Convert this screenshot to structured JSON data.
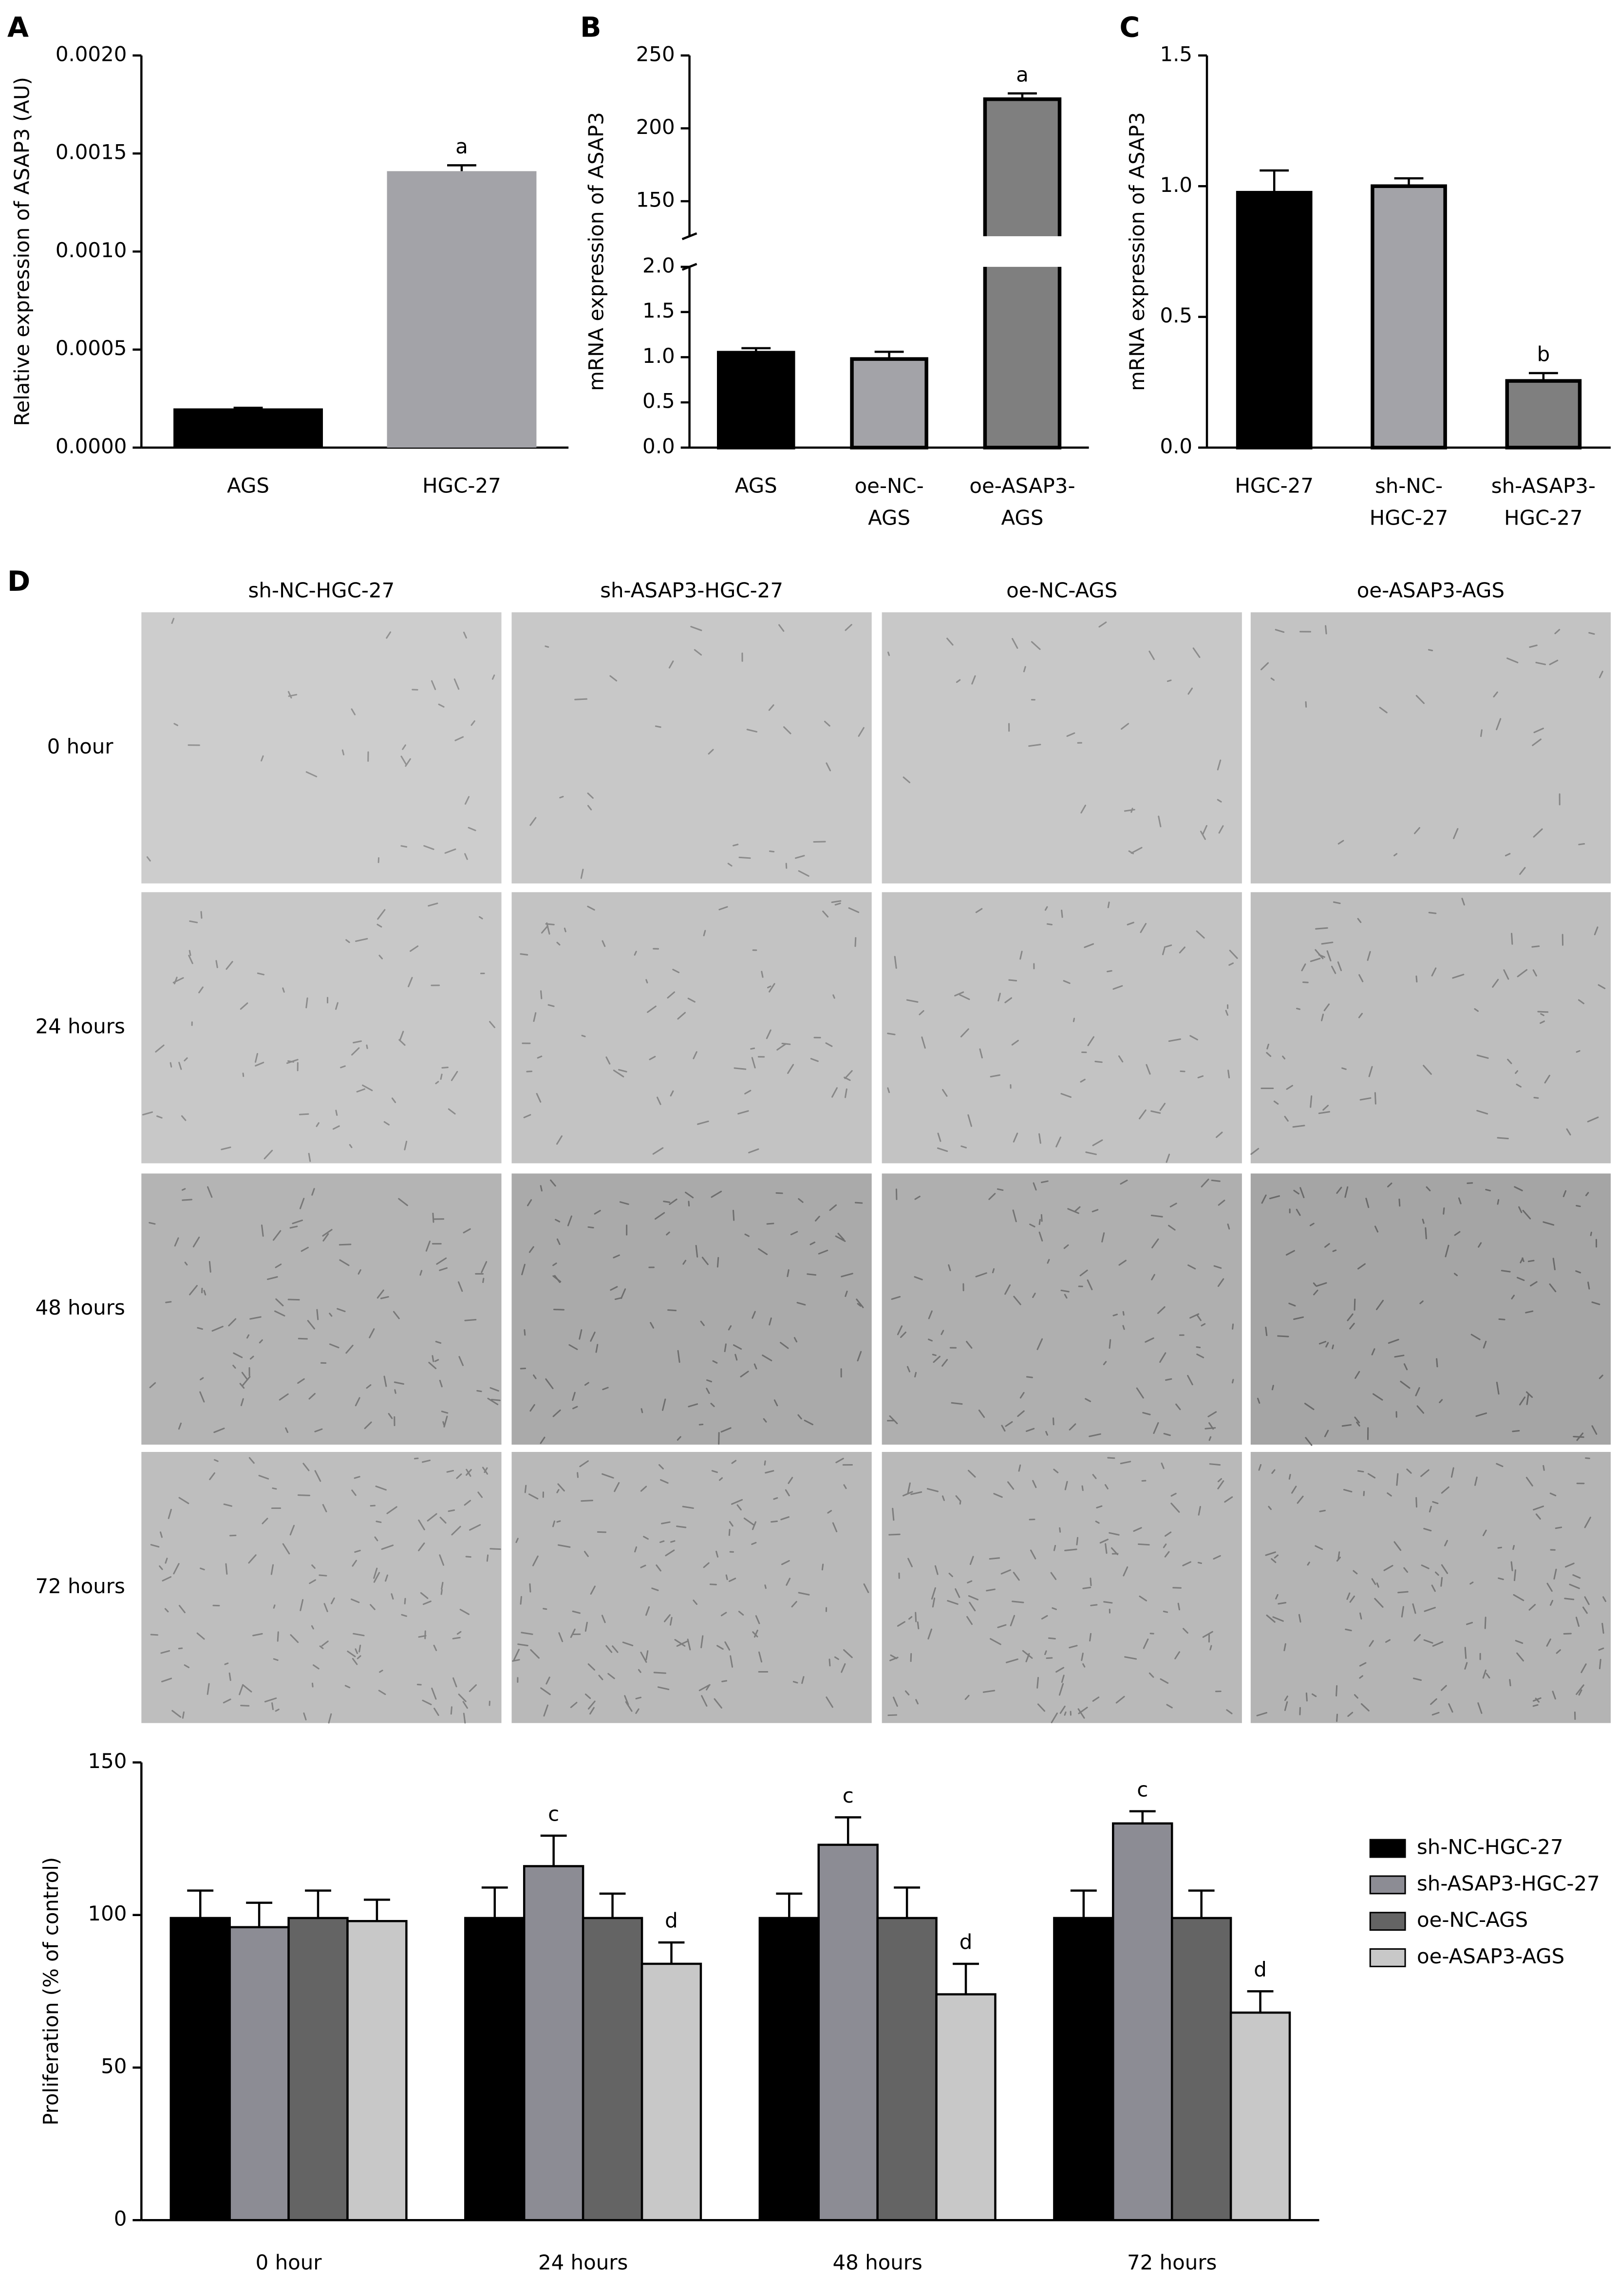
{
  "chart_data": [
    {
      "type": "bar",
      "panel": "A",
      "ylabel": "Relative expression of ASAP3 (AU)",
      "categories": [
        "AGS",
        "HGC-27"
      ],
      "values": [
        0.0002,
        0.00141
      ],
      "errors": [
        3e-06,
        3e-05
      ],
      "colors": [
        "#000000",
        "#a3a3a8"
      ],
      "annotations": [
        null,
        "a"
      ],
      "ylim": [
        0,
        0.002
      ],
      "yticks": [
        {
          "value": 0,
          "label": "0.0000"
        },
        {
          "value": 0.0005,
          "label": "0.0005"
        },
        {
          "value": 0.001,
          "label": "0.0010"
        },
        {
          "value": 0.0015,
          "label": "0.0015"
        },
        {
          "value": 0.002,
          "label": "0.0020"
        }
      ]
    },
    {
      "type": "bar",
      "panel": "B",
      "ylabel": "mRNA expression of ASAP3",
      "categories": [
        "AGS",
        "oe-NC-\nAGS",
        "oe-ASAP3-\nAGS"
      ],
      "values": [
        1.05,
        0.98,
        220
      ],
      "errors": [
        0.05,
        0.08,
        4
      ],
      "colors": [
        "#000000",
        "#a3a3a8",
        "#7f7f7f"
      ],
      "annotations": [
        null,
        null,
        "a"
      ],
      "ylim": [
        0,
        250
      ],
      "axis_break": [
        2,
        126
      ],
      "yticks": [
        {
          "value": 0,
          "label": "0.0"
        },
        {
          "value": 0.5,
          "label": "0.5"
        },
        {
          "value": 1,
          "label": "1.0"
        },
        {
          "value": 1.5,
          "label": "1.5"
        },
        {
          "value": 2,
          "label": "2.0"
        },
        150,
        200,
        250
      ]
    },
    {
      "type": "bar",
      "panel": "C",
      "ylabel": "mRNA expression of ASAP3",
      "categories": [
        "HGC-27",
        "sh-NC-\nHGC-27",
        "sh-ASAP3-\nHGC-27"
      ],
      "values": [
        0.975,
        1.0,
        0.255
      ],
      "errors": [
        0.085,
        0.03,
        0.03
      ],
      "colors": [
        "#000000",
        "#a3a3a8",
        "#7f7f7f"
      ],
      "annotations": [
        null,
        null,
        "b"
      ],
      "ylim": [
        0,
        1.5
      ],
      "yticks": [
        {
          "value": 0,
          "label": "0.0"
        },
        {
          "value": 0.5,
          "label": "0.5"
        },
        {
          "value": 1,
          "label": "1.0"
        },
        {
          "value": 1.5,
          "label": "1.5"
        }
      ]
    },
    {
      "type": "grouped_bar",
      "ylabel": "Proliferation (% of control)",
      "categories": [
        "0 hour",
        "24 hours",
        "48 hours",
        "72 hours"
      ],
      "series": [
        {
          "name": "sh-NC-HGC-27",
          "color": "#000000",
          "values": [
            99,
            99,
            99,
            99
          ],
          "errors": [
            9,
            10,
            8,
            9
          ],
          "annotations": [
            null,
            null,
            null,
            null
          ]
        },
        {
          "name": "sh-ASAP3-HGC-27",
          "color": "#8c8c94",
          "values": [
            96,
            116,
            123,
            130
          ],
          "errors": [
            8,
            10,
            9,
            4
          ],
          "annotations": [
            null,
            "c",
            "c",
            "c"
          ]
        },
        {
          "name": "oe-NC-AGS",
          "color": "#646464",
          "values": [
            99,
            99,
            99,
            99
          ],
          "errors": [
            9,
            8,
            10,
            9
          ],
          "annotations": [
            null,
            null,
            null,
            null
          ]
        },
        {
          "name": "oe-ASAP3-AGS",
          "color": "#c8c8c8",
          "values": [
            98,
            84,
            74,
            68
          ],
          "errors": [
            7,
            7,
            10,
            7
          ],
          "annotations": [
            null,
            "d",
            "d",
            "d"
          ]
        }
      ],
      "ylim": [
        0,
        150
      ],
      "yticks": [
        0,
        50,
        100,
        150
      ],
      "legend": "right"
    }
  ],
  "image_grid": {
    "panel": "D",
    "columns": [
      "sh-NC-HGC-27",
      "sh-ASAP3-HGC-27",
      "oe-NC-AGS",
      "oe-ASAP3-AGS"
    ],
    "rows": [
      "0 hour",
      "24 hours",
      "48 hours",
      "72 hours"
    ]
  }
}
